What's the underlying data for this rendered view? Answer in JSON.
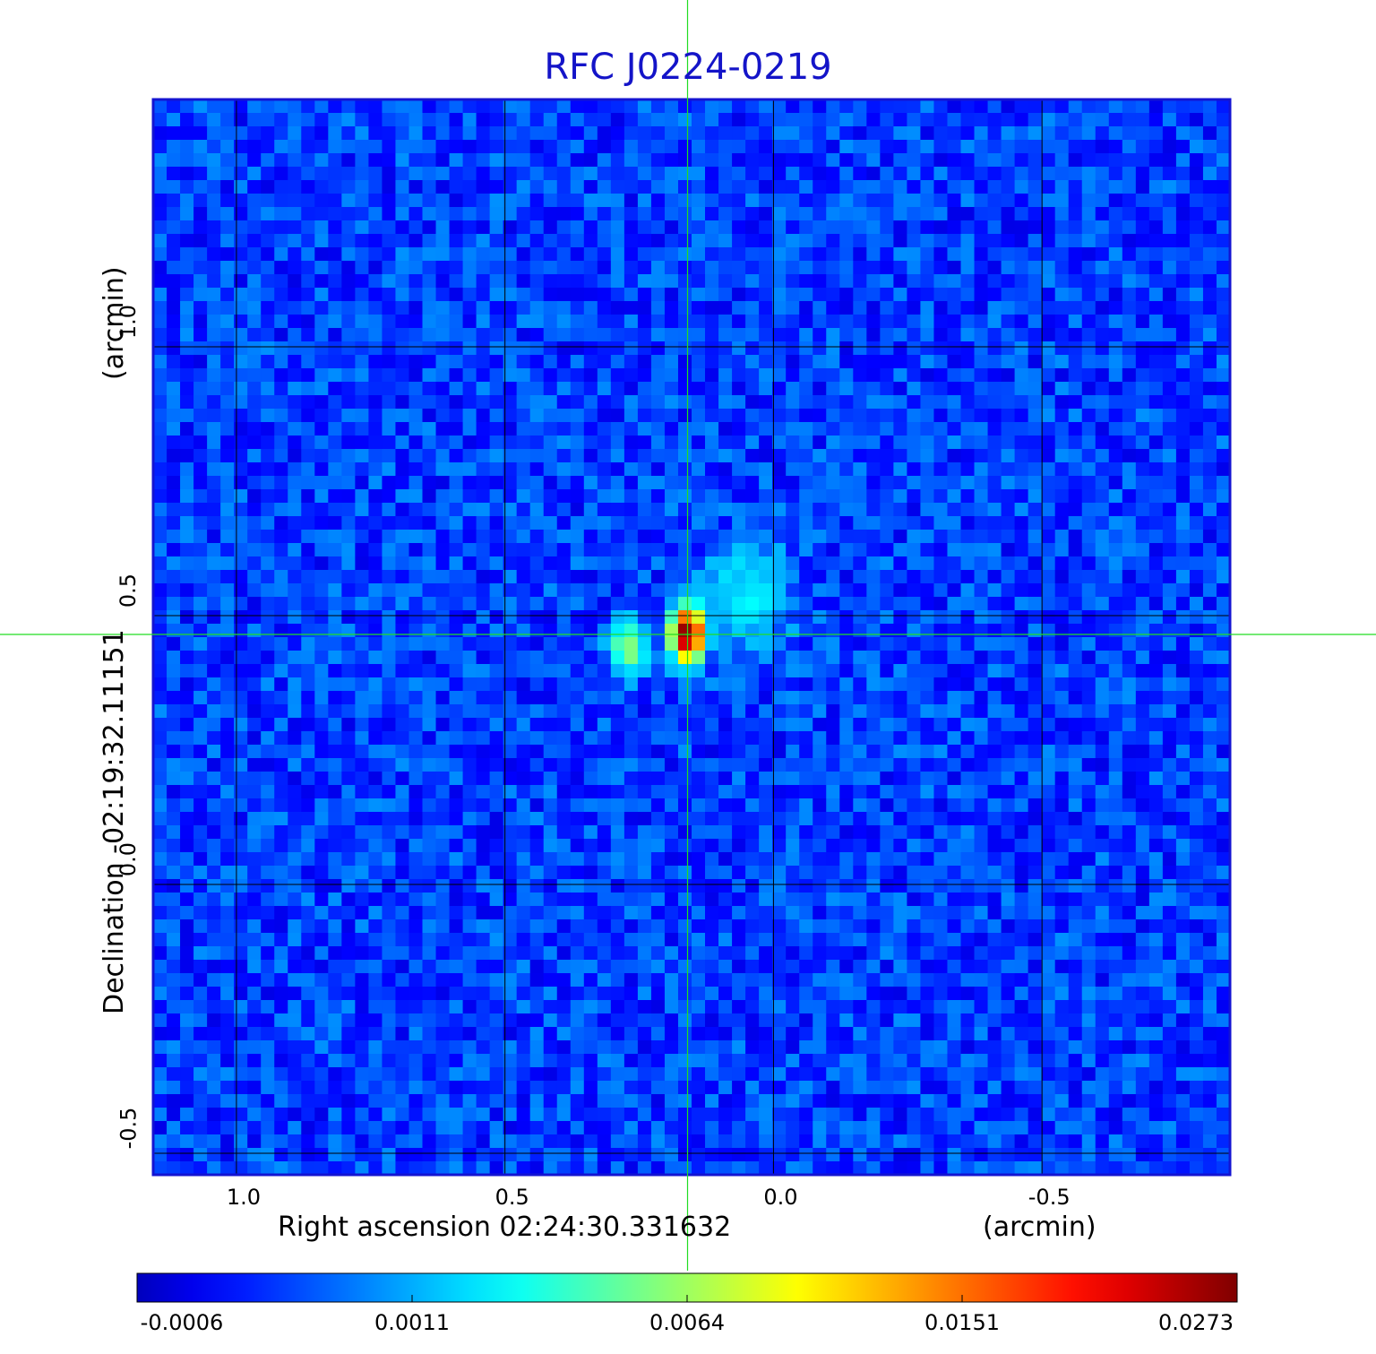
{
  "chart_data": {
    "type": "heatmap",
    "title": "RFC J0224-0219",
    "xlabel": "Right ascension  02:24:30.331632",
    "xunit": "(arcmin)",
    "ylabel": "Declination  -02:19:32.11151",
    "yunit": "(arcmin)",
    "x_ticks": [
      "1.0",
      "0.5",
      "0.0",
      "-0.5"
    ],
    "y_ticks": [
      "1.0",
      "0.5",
      "0.0",
      "-0.5"
    ],
    "x_tick_values": [
      1.0,
      0.5,
      0.0,
      -0.5
    ],
    "y_tick_values": [
      1.0,
      0.5,
      0.0,
      -0.5
    ],
    "xlim": [
      1.155,
      -0.85
    ],
    "ylim": [
      -0.54,
      1.46
    ],
    "grid": true,
    "crosshair": {
      "x": 0.16,
      "y": 0.465
    },
    "colorbar": {
      "ticks": [
        "-0.0006",
        "0.0011",
        "0.0064",
        "0.0151",
        "0.0273"
      ],
      "tick_values": [
        -0.0006,
        0.0011,
        0.0064,
        0.0151,
        0.0273
      ],
      "colormap": "jet",
      "placement": "bottom"
    },
    "sources": [
      {
        "x": 0.16,
        "y": 0.465,
        "peak": 0.0273
      },
      {
        "x": 0.27,
        "y": 0.44,
        "peak": 0.0058
      },
      {
        "x": 0.05,
        "y": 0.54,
        "peak": 0.0022
      }
    ],
    "background_range": [
      -0.0006,
      0.0014
    ]
  },
  "colors": {
    "title": "#1414c8",
    "frame": "#1414d2",
    "grid": "#000000",
    "crosshair": "#22dd22"
  }
}
